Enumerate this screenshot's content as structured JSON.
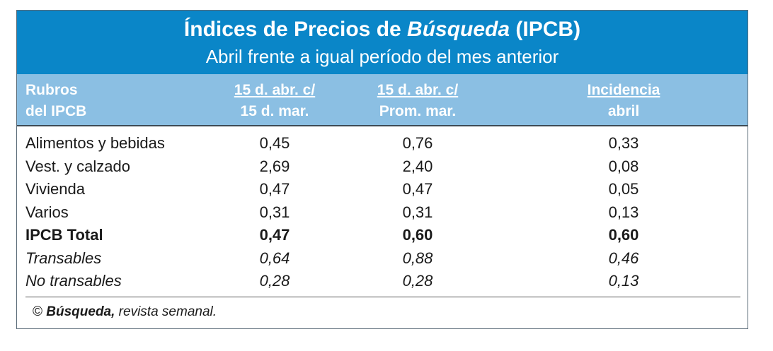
{
  "chart_data": {
    "type": "table",
    "title_part1": "Índices de Precios de ",
    "title_part2": "Búsqueda",
    "title_part3": " (IPCB)",
    "subtitle": "Abril frente a igual período del mes anterior",
    "columns": [
      {
        "line1": "Rubros",
        "line2": "del IPCB"
      },
      {
        "line1": "15 d. abr. c/",
        "line2": "15 d. mar."
      },
      {
        "line1": "15 d. abr. c/",
        "line2": "Prom. mar."
      },
      {
        "line1": "Incidencia",
        "line2": "abril"
      }
    ],
    "rows": [
      {
        "label": "Alimentos y bebidas",
        "values": [
          "0,45",
          "0,76",
          "0,33"
        ],
        "style": "normal"
      },
      {
        "label": "Vest. y calzado",
        "values": [
          "2,69",
          "2,40",
          "0,08"
        ],
        "style": "normal"
      },
      {
        "label": "Vivienda",
        "values": [
          "0,47",
          "0,47",
          "0,05"
        ],
        "style": "normal"
      },
      {
        "label": "Varios",
        "values": [
          "0,31",
          "0,31",
          "0,13"
        ],
        "style": "normal"
      },
      {
        "label": "IPCB Total",
        "values": [
          "0,47",
          "0,60",
          "0,60"
        ],
        "style": "bold"
      },
      {
        "label": "Transables",
        "values": [
          "0,64",
          "0,88",
          "0,46"
        ],
        "style": "italic"
      },
      {
        "label": "No transables",
        "values": [
          "0,28",
          "0,28",
          "0,13"
        ],
        "style": "italic"
      }
    ],
    "colors": {
      "title_band": "#0a86c8",
      "header_band": "#8bbfe3",
      "header_text": "#ffffff",
      "body_text": "#1a1a1a"
    }
  },
  "footer": {
    "copyright": "©",
    "brand": "Búsqueda,",
    "text": " revista semanal."
  }
}
